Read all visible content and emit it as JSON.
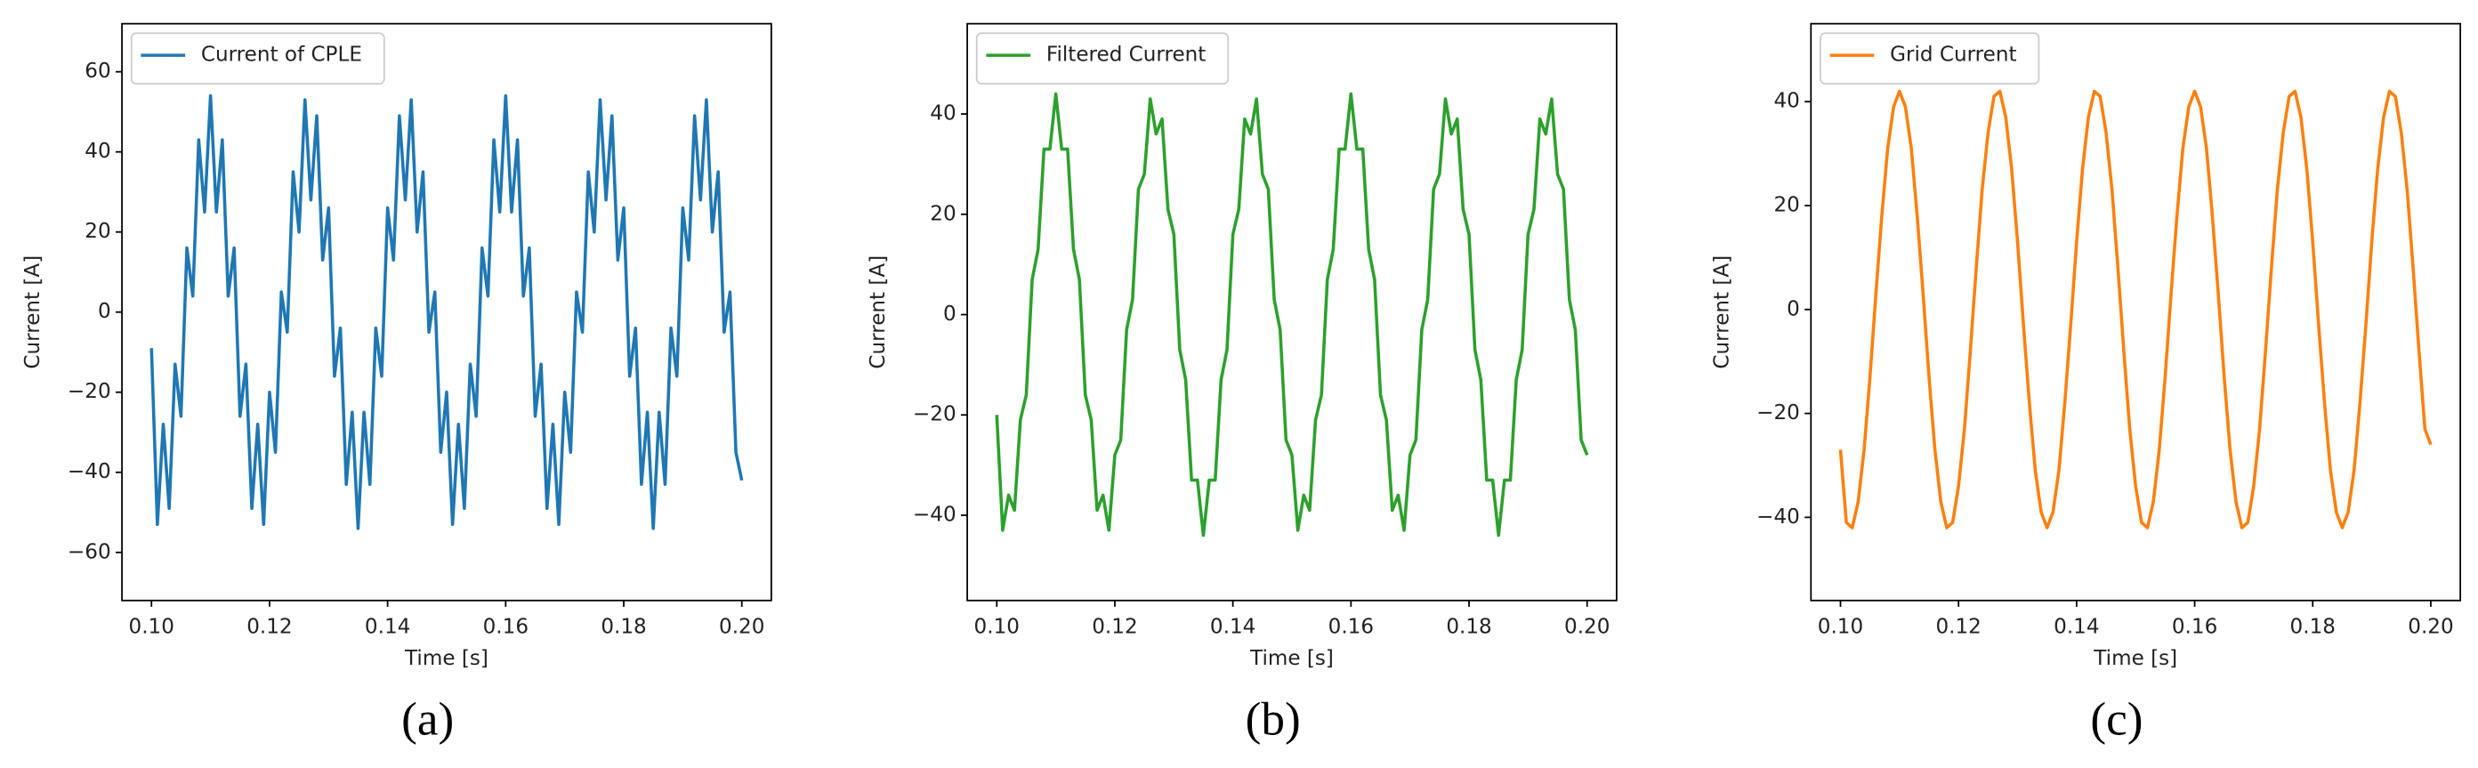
{
  "chart_data": [
    {
      "type": "line",
      "caption": "(a)",
      "xlabel": "Time [s]",
      "ylabel": "Current [A]",
      "legend": "upper left",
      "xlim": [
        0.095,
        0.205
      ],
      "ylim": [
        -72,
        72
      ],
      "xticks": [
        {
          "value": 0.1,
          "label": "0.10"
        },
        0.12,
        0.14,
        0.16,
        0.18,
        {
          "value": 0.2,
          "label": "0.20"
        }
      ],
      "yticks": [
        {
          "value": -60,
          "label": "−60"
        },
        {
          "value": -40,
          "label": "−40"
        },
        {
          "value": -20,
          "label": "−20"
        },
        0,
        20,
        40,
        60
      ],
      "x": [
        0.1,
        0.101,
        0.102,
        0.103,
        0.104,
        0.105,
        0.106,
        0.107,
        0.108,
        0.109,
        0.11,
        0.111,
        0.112,
        0.113,
        0.114,
        0.115,
        0.116,
        0.117,
        0.118,
        0.119,
        0.12,
        0.121,
        0.122,
        0.123,
        0.124,
        0.125,
        0.126,
        0.127,
        0.128,
        0.129,
        0.13,
        0.131,
        0.132,
        0.133,
        0.134,
        0.135,
        0.136,
        0.137,
        0.138,
        0.139,
        0.14,
        0.141,
        0.142,
        0.143,
        0.144,
        0.145,
        0.146,
        0.147,
        0.148,
        0.149,
        0.15,
        0.151,
        0.152,
        0.153,
        0.154,
        0.155,
        0.156,
        0.157,
        0.158,
        0.159,
        0.16,
        0.161,
        0.162,
        0.163,
        0.164,
        0.165,
        0.166,
        0.167,
        0.168,
        0.169,
        0.17,
        0.171,
        0.172,
        0.173,
        0.174,
        0.175,
        0.176,
        0.177,
        0.178,
        0.179,
        0.18,
        0.181,
        0.182,
        0.183,
        0.184,
        0.185,
        0.186,
        0.187,
        0.188,
        0.189,
        0.19,
        0.191,
        0.192,
        0.193,
        0.194,
        0.195,
        0.196,
        0.197,
        0.198,
        0.199,
        0.2
      ],
      "series": [
        {
          "name": "Current of CPLE",
          "color": "#1f77b4",
          "values": [
            -9,
            -53,
            -28,
            -49,
            -13,
            -26,
            16,
            4,
            43,
            25,
            54,
            25,
            43,
            4,
            16,
            -26,
            -13,
            -49,
            -28,
            -53,
            -20,
            -35,
            5,
            -5,
            35,
            20,
            53,
            28,
            49,
            13,
            26,
            -16,
            -4,
            -43,
            -25,
            -54,
            -25,
            -43,
            -4,
            -16,
            26,
            13,
            49,
            28,
            53,
            20,
            35,
            -5,
            5,
            -35,
            -20,
            -53,
            -28,
            -49,
            -13,
            -26,
            16,
            4,
            43,
            25,
            54,
            25,
            43,
            4,
            16,
            -26,
            -13,
            -49,
            -28,
            -53,
            -20,
            -35,
            5,
            -5,
            35,
            20,
            53,
            28,
            49,
            13,
            26,
            -16,
            -4,
            -43,
            -25,
            -54,
            -25,
            -43,
            -4,
            -16,
            26,
            13,
            49,
            28,
            53,
            20,
            35,
            -5,
            5,
            -35,
            -42
          ]
        }
      ]
    },
    {
      "type": "line",
      "caption": "(b)",
      "xlabel": "Time [s]",
      "ylabel": "Current [A]",
      "legend": "upper left",
      "xlim": [
        0.095,
        0.205
      ],
      "ylim": [
        -57,
        58
      ],
      "xticks": [
        {
          "value": 0.1,
          "label": "0.10"
        },
        0.12,
        0.14,
        0.16,
        0.18,
        {
          "value": 0.2,
          "label": "0.20"
        }
      ],
      "yticks": [
        {
          "value": -40,
          "label": "−40"
        },
        {
          "value": -20,
          "label": "−20"
        },
        0,
        20,
        40
      ],
      "x": [
        0.1,
        0.101,
        0.102,
        0.103,
        0.104,
        0.105,
        0.106,
        0.107,
        0.108,
        0.109,
        0.11,
        0.111,
        0.112,
        0.113,
        0.114,
        0.115,
        0.116,
        0.117,
        0.118,
        0.119,
        0.12,
        0.121,
        0.122,
        0.123,
        0.124,
        0.125,
        0.126,
        0.127,
        0.128,
        0.129,
        0.13,
        0.131,
        0.132,
        0.133,
        0.134,
        0.135,
        0.136,
        0.137,
        0.138,
        0.139,
        0.14,
        0.141,
        0.142,
        0.143,
        0.144,
        0.145,
        0.146,
        0.147,
        0.148,
        0.149,
        0.15,
        0.151,
        0.152,
        0.153,
        0.154,
        0.155,
        0.156,
        0.157,
        0.158,
        0.159,
        0.16,
        0.161,
        0.162,
        0.163,
        0.164,
        0.165,
        0.166,
        0.167,
        0.168,
        0.169,
        0.17,
        0.171,
        0.172,
        0.173,
        0.174,
        0.175,
        0.176,
        0.177,
        0.178,
        0.179,
        0.18,
        0.181,
        0.182,
        0.183,
        0.184,
        0.185,
        0.186,
        0.187,
        0.188,
        0.189,
        0.19,
        0.191,
        0.192,
        0.193,
        0.194,
        0.195,
        0.196,
        0.197,
        0.198,
        0.199,
        0.2
      ],
      "series": [
        {
          "name": "Filtered Current",
          "color": "#2ca02c",
          "values": [
            -20,
            -43,
            -36,
            -39,
            -21,
            -16,
            7,
            13,
            33,
            33,
            44,
            33,
            33,
            13,
            7,
            -16,
            -21,
            -39,
            -36,
            -43,
            -28,
            -25,
            -3,
            3,
            25,
            28,
            43,
            36,
            39,
            21,
            16,
            -7,
            -13,
            -33,
            -33,
            -44,
            -33,
            -33,
            -13,
            -7,
            16,
            21,
            39,
            36,
            43,
            28,
            25,
            3,
            -3,
            -25,
            -28,
            -43,
            -36,
            -39,
            -21,
            -16,
            7,
            13,
            33,
            33,
            44,
            33,
            33,
            13,
            7,
            -16,
            -21,
            -39,
            -36,
            -43,
            -28,
            -25,
            -3,
            3,
            25,
            28,
            43,
            36,
            39,
            21,
            16,
            -7,
            -13,
            -33,
            -33,
            -44,
            -33,
            -33,
            -13,
            -7,
            16,
            21,
            39,
            36,
            43,
            28,
            25,
            3,
            -3,
            -25,
            -28
          ]
        }
      ]
    },
    {
      "type": "line",
      "caption": "(c)",
      "xlabel": "Time [s]",
      "ylabel": "Current [A]",
      "legend": "upper left",
      "xlim": [
        0.095,
        0.205
      ],
      "ylim": [
        -56,
        55
      ],
      "xticks": [
        {
          "value": 0.1,
          "label": "0.10"
        },
        0.12,
        0.14,
        0.16,
        0.18,
        {
          "value": 0.2,
          "label": "0.20"
        }
      ],
      "yticks": [
        {
          "value": -40,
          "label": "−40"
        },
        {
          "value": -20,
          "label": "−20"
        },
        0,
        20,
        40
      ],
      "x": [
        0.1,
        0.101,
        0.102,
        0.103,
        0.104,
        0.105,
        0.106,
        0.107,
        0.108,
        0.109,
        0.11,
        0.111,
        0.112,
        0.113,
        0.114,
        0.115,
        0.116,
        0.117,
        0.118,
        0.119,
        0.12,
        0.121,
        0.122,
        0.123,
        0.124,
        0.125,
        0.126,
        0.127,
        0.128,
        0.129,
        0.13,
        0.131,
        0.132,
        0.133,
        0.134,
        0.135,
        0.136,
        0.137,
        0.138,
        0.139,
        0.14,
        0.141,
        0.142,
        0.143,
        0.144,
        0.145,
        0.146,
        0.147,
        0.148,
        0.149,
        0.15,
        0.151,
        0.152,
        0.153,
        0.154,
        0.155,
        0.156,
        0.157,
        0.158,
        0.159,
        0.16,
        0.161,
        0.162,
        0.163,
        0.164,
        0.165,
        0.166,
        0.167,
        0.168,
        0.169,
        0.17,
        0.171,
        0.172,
        0.173,
        0.174,
        0.175,
        0.176,
        0.177,
        0.178,
        0.179,
        0.18,
        0.181,
        0.182,
        0.183,
        0.184,
        0.185,
        0.186,
        0.187,
        0.188,
        0.189,
        0.19,
        0.191,
        0.192,
        0.193,
        0.194,
        0.195,
        0.196,
        0.197,
        0.198,
        0.199,
        0.2
      ],
      "series": [
        {
          "name": "Grid Current",
          "color": "#ff7f0e",
          "values": [
            -27,
            -41,
            -42,
            -37,
            -27,
            -13,
            3,
            18,
            31,
            39,
            42,
            39,
            31,
            18,
            3,
            -13,
            -27,
            -37,
            -42,
            -41,
            -34,
            -23,
            -8,
            8,
            23,
            34,
            41,
            42,
            37,
            27,
            13,
            -3,
            -18,
            -31,
            -39,
            -42,
            -39,
            -31,
            -18,
            -3,
            13,
            27,
            37,
            42,
            41,
            34,
            23,
            8,
            -8,
            -23,
            -34,
            -41,
            -42,
            -37,
            -27,
            -13,
            3,
            18,
            31,
            39,
            42,
            39,
            31,
            18,
            3,
            -13,
            -27,
            -37,
            -42,
            -41,
            -34,
            -23,
            -8,
            8,
            23,
            34,
            41,
            42,
            37,
            27,
            13,
            -3,
            -18,
            -31,
            -39,
            -42,
            -39,
            -31,
            -18,
            -3,
            13,
            27,
            37,
            42,
            41,
            34,
            23,
            8,
            -8,
            -23,
            -26
          ]
        }
      ]
    }
  ]
}
